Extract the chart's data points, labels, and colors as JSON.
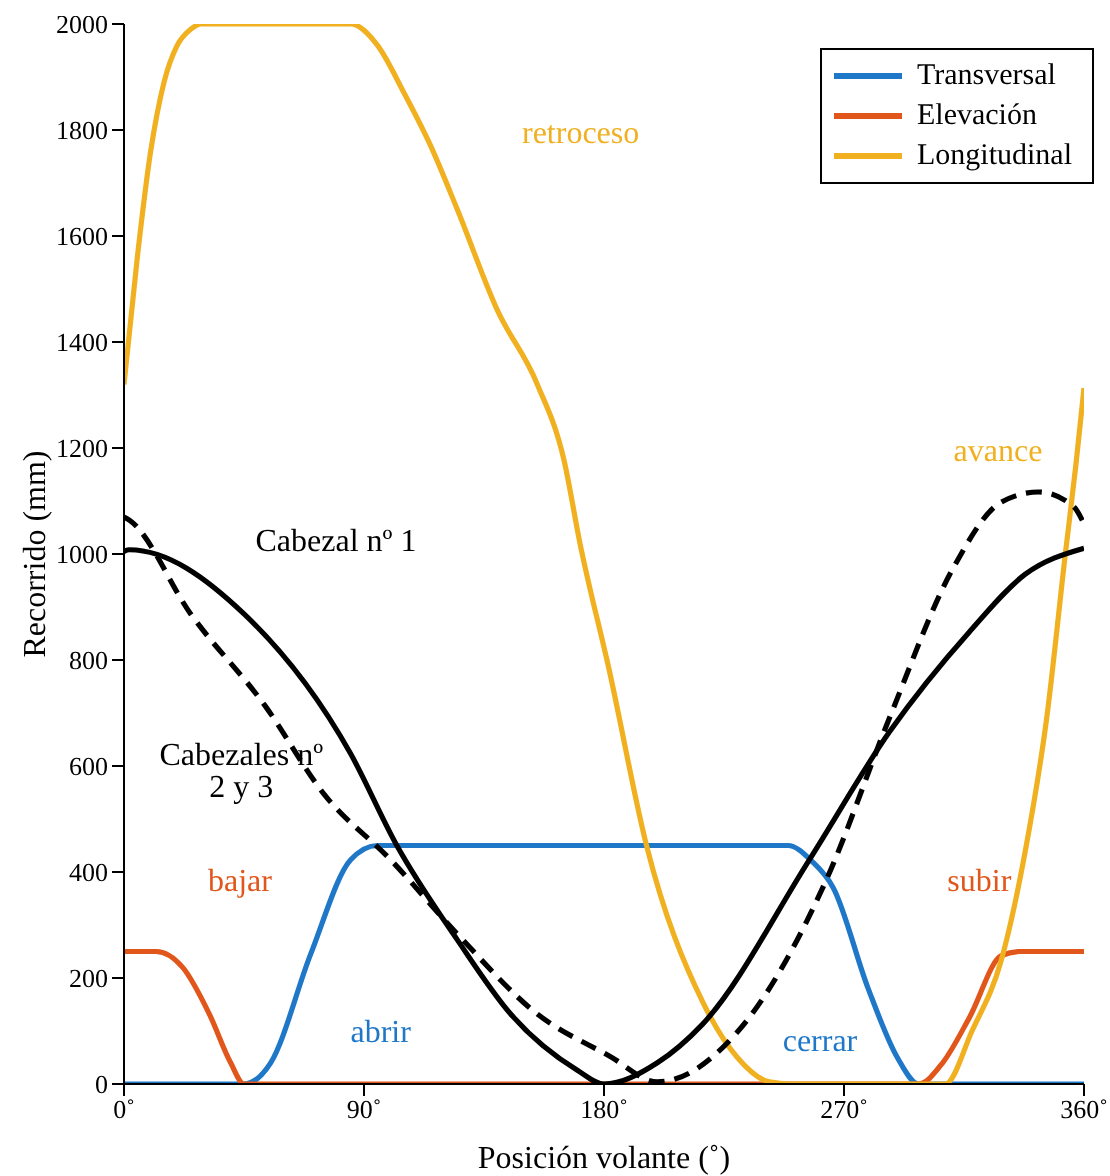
{
  "chart_data": {
    "type": "line",
    "xlabel": "Posición volante (˚)",
    "ylabel": "Recorrido (mm)",
    "xlim": [
      0,
      360
    ],
    "xticks": [
      {
        "value": 0,
        "label": "0˚"
      },
      {
        "value": 90,
        "label": "90˚"
      },
      {
        "value": 180,
        "label": "180˚"
      },
      {
        "value": 270,
        "label": "270˚"
      },
      {
        "value": 360,
        "label": "360˚"
      }
    ],
    "ylim": [
      0,
      2000
    ],
    "yticks": [
      0,
      200,
      400,
      600,
      800,
      1000,
      1200,
      1400,
      1600,
      1800,
      2000
    ],
    "grid": false,
    "legend": "top right",
    "marker": "none",
    "series": [
      {
        "name": "Transversal",
        "color": "#1f77c8",
        "x": [
          0,
          45,
          55,
          70,
          85,
          95,
          180,
          249,
          258,
          266,
          279,
          290,
          298,
          360
        ],
        "values": [
          0,
          0,
          40,
          245,
          423,
          450,
          450,
          450,
          420,
          370,
          181,
          50,
          0,
          0
        ]
      },
      {
        "name": "Elevación",
        "color": "#e0561b",
        "x": [
          0,
          12,
          22,
          32,
          40,
          45,
          180,
          298,
          307,
          317,
          329,
          336,
          360
        ],
        "values": [
          250,
          250,
          220,
          132,
          40,
          0,
          0,
          0,
          40,
          125,
          242,
          250,
          250
        ]
      },
      {
        "name": "Longitudinal",
        "color": "#f0b020",
        "x": [
          0,
          5,
          10,
          15,
          20,
          25,
          29,
          85,
          95,
          105,
          115,
          125,
          140,
          155,
          165,
          171,
          182,
          196,
          217,
          230,
          242,
          250,
          308,
          318,
          329,
          338,
          346,
          353,
          357,
          360
        ],
        "values": [
          1320,
          1560,
          1760,
          1890,
          1960,
          1990,
          2000,
          2000,
          1960,
          1870,
          1770,
          1650,
          1460,
          1320,
          1177,
          1020,
          780,
          449,
          155,
          50,
          4,
          0,
          0,
          100,
          234,
          440,
          690,
          1000,
          1170,
          1313
        ]
      },
      {
        "color": "#000000",
        "line_style": "solid",
        "x": [
          0,
          2,
          45,
          85,
          102,
          125,
          145,
          170,
          180,
          200,
          217,
          257,
          287,
          317,
          338,
          360
        ],
        "values": [
          1005,
          1008,
          887,
          623,
          453,
          272,
          132,
          26,
          0,
          40,
          113,
          423,
          664,
          853,
          962,
          1011
        ]
      },
      {
        "color": "#000000",
        "line_style": "dashed",
        "x": [
          0,
          2,
          25,
          53,
          75,
          100,
          125,
          155,
          182,
          200,
          230,
          263,
          287,
          311,
          329,
          343,
          356,
          360
        ],
        "values": [
          1070,
          1064,
          887,
          713,
          547,
          423,
          283,
          132,
          53,
          4,
          98,
          381,
          690,
          974,
          1098,
          1117,
          1090,
          1057
        ]
      }
    ],
    "annotations": [
      {
        "text": "Cabezal nº 1",
        "x": 45,
        "y": 887
      },
      {
        "text": "Cabezales nº 2 y 3",
        "x": 53,
        "y": 713
      },
      {
        "text": "bajar",
        "x": 12,
        "y": 250
      },
      {
        "text": "abrir",
        "x": 70,
        "y": 245
      },
      {
        "text": "cerrar",
        "x": 279,
        "y": 181
      },
      {
        "text": "subir",
        "x": 329,
        "y": 242
      },
      {
        "text": "retroceso",
        "x": 115,
        "y": 1770
      },
      {
        "text": "avance",
        "x": 357,
        "y": 1170
      }
    ]
  }
}
